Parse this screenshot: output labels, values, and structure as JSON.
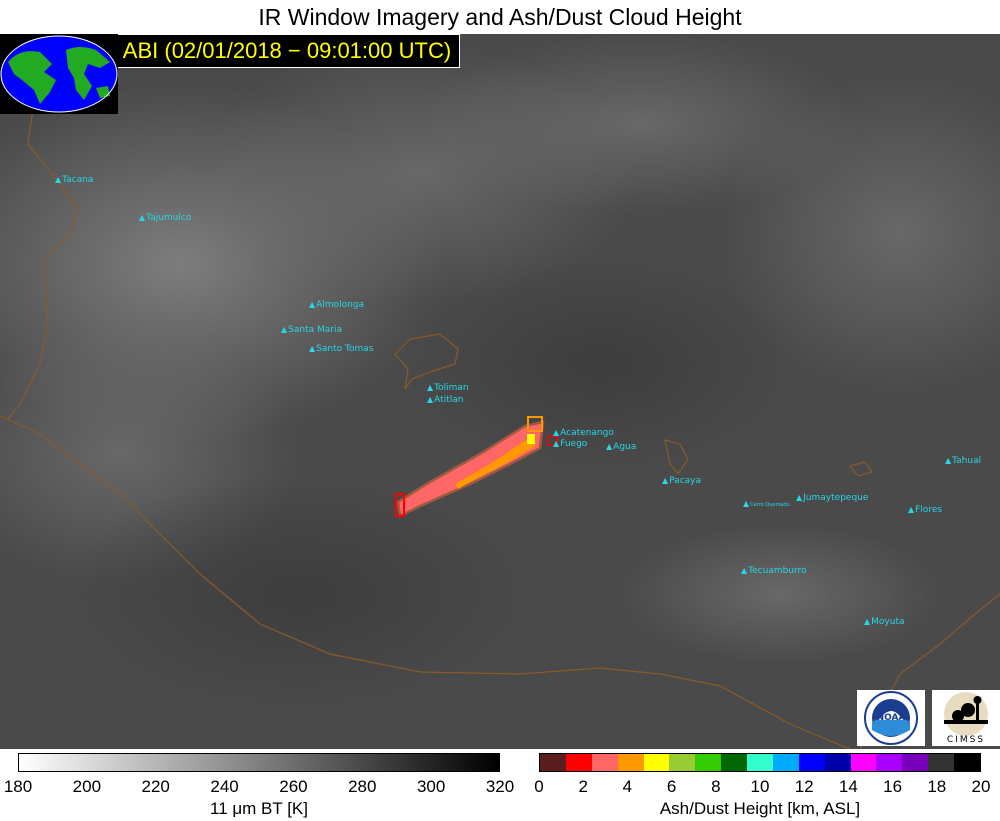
{
  "title": "IR Window Imagery and Ash/Dust Cloud Height",
  "subtitle": "GOES−16 ABI (02/01/2018 − 09:01:00 UTC)",
  "volcanoes": [
    {
      "name": "Tacana"
    },
    {
      "name": "Tajumulco"
    },
    {
      "name": "Almolonga"
    },
    {
      "name": "Santa Maria"
    },
    {
      "name": "Santo Tomas"
    },
    {
      "name": "Toliman"
    },
    {
      "name": "Atitlan"
    },
    {
      "name": "Acatenango"
    },
    {
      "name": "Fuego"
    },
    {
      "name": "Agua"
    },
    {
      "name": "Pacaya"
    },
    {
      "name": "Cerro Quemado"
    },
    {
      "name": "Jumaytepeque"
    },
    {
      "name": "Tahual"
    },
    {
      "name": "Flores"
    },
    {
      "name": "Tecuamburro"
    },
    {
      "name": "Moyuta"
    }
  ],
  "ir_colorbar": {
    "ticks": [
      "180",
      "200",
      "220",
      "240",
      "260",
      "280",
      "300",
      "320"
    ],
    "label": "11 μm BT [K]"
  },
  "ash_colorbar": {
    "ticks": [
      "0",
      "2",
      "4",
      "6",
      "8",
      "10",
      "12",
      "14",
      "16",
      "18",
      "20"
    ],
    "label": "Ash/Dust Height [km, ASL]",
    "colors": [
      "#5a1e1e",
      "#ff0000",
      "#ff6666",
      "#ff9900",
      "#ffff00",
      "#99cc33",
      "#33cc00",
      "#006600",
      "#33ffcc",
      "#00aaff",
      "#0000ff",
      "#0000aa",
      "#ff00ff",
      "#aa00ff",
      "#7700bb",
      "#333333",
      "#000000"
    ]
  },
  "logos": {
    "noaa": "NOAA",
    "cimss": "CIMSS"
  }
}
